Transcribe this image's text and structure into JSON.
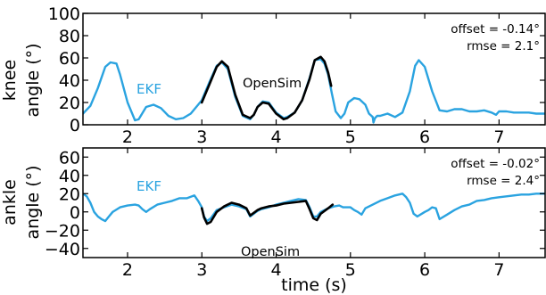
{
  "chart_data": [
    {
      "type": "line",
      "ylabel_lines": [
        "knee",
        "angle (°)"
      ],
      "xlim": [
        1.4,
        7.62
      ],
      "ylim": [
        0,
        100
      ],
      "xticks": [
        2,
        3,
        4,
        5,
        6,
        7
      ],
      "yticks": [
        0,
        20,
        40,
        60,
        80,
        100
      ],
      "annotations": [
        "offset = -0.14°",
        "rmse = 2.1°"
      ],
      "series": [
        {
          "name": "EKF",
          "color": "#2aa3e0",
          "x": [
            1.4,
            1.5,
            1.6,
            1.7,
            1.77,
            1.85,
            1.9,
            2.0,
            2.1,
            2.15,
            2.25,
            2.35,
            2.45,
            2.55,
            2.65,
            2.75,
            2.85,
            2.95,
            3.0,
            3.1,
            3.2,
            3.27,
            3.35,
            3.45,
            3.55,
            3.65,
            3.7,
            3.75,
            3.82,
            3.9,
            4.0,
            4.1,
            4.15,
            4.25,
            4.35,
            4.45,
            4.52,
            4.6,
            4.65,
            4.7,
            4.75,
            4.8,
            4.87,
            4.92,
            4.97,
            5.05,
            5.12,
            5.2,
            5.25,
            5.3,
            5.31,
            5.33,
            5.36,
            5.4,
            5.5,
            5.6,
            5.7,
            5.8,
            5.87,
            5.92,
            6.0,
            6.1,
            6.2,
            6.3,
            6.4,
            6.5,
            6.6,
            6.7,
            6.8,
            6.9,
            6.96,
            7.0,
            7.1,
            7.2,
            7.3,
            7.4,
            7.5,
            7.62
          ],
          "y": [
            10,
            17,
            33,
            52,
            56,
            55,
            45,
            20,
            4,
            5,
            16,
            18,
            15,
            8,
            5,
            6,
            10,
            18,
            22,
            38,
            53,
            56,
            50,
            25,
            8,
            5,
            9,
            16,
            21,
            20,
            11,
            6,
            7,
            11,
            22,
            42,
            58,
            59,
            55,
            45,
            28,
            12,
            6,
            10,
            20,
            24,
            23,
            18,
            10,
            7,
            2,
            6,
            8,
            8,
            10,
            7,
            11,
            30,
            53,
            58,
            52,
            30,
            13,
            12,
            14,
            14,
            12,
            12,
            13,
            11,
            9,
            12,
            12,
            11,
            11,
            11,
            10,
            10
          ]
        },
        {
          "name": "OpenSim",
          "color": "#000000",
          "x": [
            3.0,
            3.1,
            3.2,
            3.27,
            3.35,
            3.45,
            3.55,
            3.65,
            3.7,
            3.75,
            3.82,
            3.9,
            4.0,
            4.1,
            4.15,
            4.25,
            4.35,
            4.45,
            4.52,
            4.6,
            4.65,
            4.7,
            4.74
          ],
          "y": [
            20,
            36,
            52,
            57,
            52,
            27,
            9,
            6,
            9,
            16,
            20,
            19,
            10,
            5,
            6,
            11,
            22,
            41,
            58,
            61,
            57,
            47,
            35
          ]
        }
      ]
    },
    {
      "type": "line",
      "ylabel_lines": [
        "ankle",
        "angle (°)"
      ],
      "xlabel": "time (s)",
      "xlim": [
        1.4,
        7.62
      ],
      "ylim": [
        -50,
        70
      ],
      "xticks": [
        2,
        3,
        4,
        5,
        6,
        7
      ],
      "yticks": [
        -40,
        -20,
        0,
        20,
        40,
        60
      ],
      "annotations": [
        "offset = -0.02°",
        "rmse = 2.4°"
      ],
      "series": [
        {
          "name": "EKF",
          "color": "#2aa3e0",
          "x": [
            1.4,
            1.45,
            1.5,
            1.55,
            1.6,
            1.65,
            1.7,
            1.75,
            1.8,
            1.9,
            2.0,
            2.1,
            2.15,
            2.2,
            2.25,
            2.3,
            2.4,
            2.5,
            2.6,
            2.7,
            2.8,
            2.9,
            2.95,
            3.0,
            3.03,
            3.07,
            3.12,
            3.2,
            3.3,
            3.4,
            3.5,
            3.6,
            3.65,
            3.7,
            3.75,
            3.8,
            3.9,
            4.0,
            4.1,
            4.2,
            4.3,
            4.4,
            4.45,
            4.5,
            4.55,
            4.6,
            4.7,
            4.78,
            4.85,
            4.9,
            5.0,
            5.05,
            5.1,
            5.15,
            5.2,
            5.3,
            5.4,
            5.5,
            5.6,
            5.7,
            5.75,
            5.8,
            5.85,
            5.9,
            6.0,
            6.05,
            6.1,
            6.15,
            6.2,
            6.3,
            6.4,
            6.5,
            6.6,
            6.7,
            6.8,
            6.9,
            7.0,
            7.1,
            7.2,
            7.3,
            7.4,
            7.5,
            7.62
          ],
          "y": [
            20,
            17,
            10,
            0,
            -5,
            -8,
            -10,
            -5,
            0,
            5,
            7,
            8,
            7,
            3,
            0,
            3,
            8,
            10,
            12,
            15,
            15,
            18,
            12,
            5,
            -5,
            -10,
            -7,
            2,
            5,
            8,
            6,
            3,
            -5,
            -2,
            1,
            3,
            5,
            8,
            10,
            12,
            14,
            13,
            5,
            -5,
            -5,
            0,
            4,
            6,
            7,
            5,
            5,
            2,
            0,
            -3,
            4,
            8,
            12,
            15,
            18,
            20,
            16,
            10,
            -2,
            -5,
            0,
            2,
            5,
            4,
            -8,
            -3,
            2,
            6,
            8,
            12,
            13,
            15,
            16,
            17,
            18,
            19,
            19,
            20,
            20
          ]
        },
        {
          "name": "OpenSim",
          "color": "#000000",
          "x": [
            3.0,
            3.03,
            3.07,
            3.12,
            3.2,
            3.3,
            3.4,
            3.5,
            3.6,
            3.65,
            3.7,
            3.75,
            3.8,
            3.9,
            4.0,
            4.1,
            4.2,
            4.3,
            4.4,
            4.45,
            4.5,
            4.55,
            4.6,
            4.7,
            4.76
          ],
          "y": [
            4,
            -6,
            -13,
            -11,
            0,
            6,
            10,
            8,
            4,
            -4,
            -1,
            2,
            4,
            6,
            7,
            9,
            10,
            11,
            12,
            3,
            -7,
            -9,
            -2,
            4,
            8
          ]
        }
      ]
    }
  ],
  "labels": {
    "top_ekf": "EKF",
    "top_os": "OpenSim",
    "bot_ekf": "EKF",
    "bot_os": "OpenSim"
  }
}
